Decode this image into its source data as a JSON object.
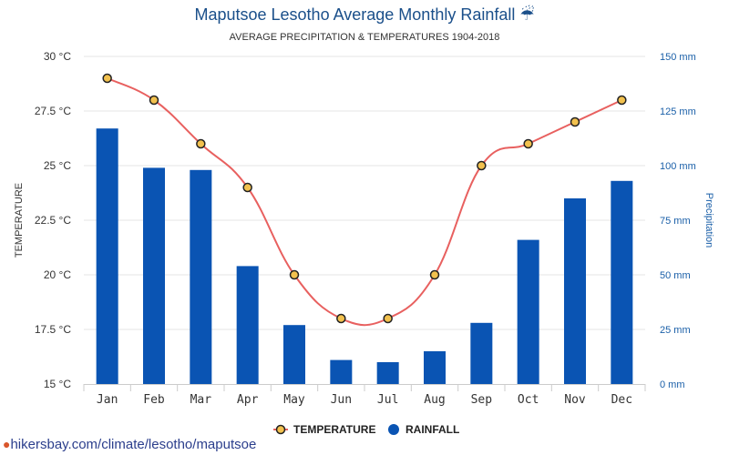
{
  "header": {
    "title": "Maputsoe Lesotho Average Monthly Rainfall",
    "title_icon": "umbrella-rain-icon",
    "subtitle": "AVERAGE PRECIPITATION & TEMPERATURES 1904-2018"
  },
  "footer": {
    "source": "hikersbay.com/climate/lesotho/maputsoe",
    "icon": "location-pin-icon"
  },
  "chart_data": {
    "type": "bar",
    "categories": [
      "Jan",
      "Feb",
      "Mar",
      "Apr",
      "May",
      "Jun",
      "Jul",
      "Aug",
      "Sep",
      "Oct",
      "Nov",
      "Dec"
    ],
    "series": [
      {
        "name": "TEMPERATURE",
        "kind": "line",
        "axis": "left",
        "color": "#e8605f",
        "marker_fill": "#f2c14e",
        "values": [
          29,
          28,
          26,
          24,
          20,
          18,
          18,
          20,
          25,
          26,
          27,
          28
        ]
      },
      {
        "name": "RAINFALL",
        "kind": "bar",
        "axis": "right",
        "color": "#0a54b3",
        "values": [
          117,
          99,
          98,
          54,
          27,
          11,
          10,
          15,
          28,
          66,
          85,
          93
        ]
      }
    ],
    "ylabel_left": "TEMPERATURE",
    "ylabel_right": "Precipitation",
    "ylim_left": [
      15,
      30
    ],
    "ylim_right": [
      0,
      150
    ],
    "yticks_left": [
      "15 °C",
      "17.5 °C",
      "20 °C",
      "22.5 °C",
      "25 °C",
      "27.5 °C",
      "30 °C"
    ],
    "yticks_right": [
      "0 mm",
      "25 mm",
      "50 mm",
      "75 mm",
      "100 mm",
      "125 mm",
      "150 mm"
    ],
    "grid": true,
    "legend_position": "bottom",
    "colors": {
      "left_axis_text": "#333333",
      "right_axis_text": "#1a5fa8"
    }
  }
}
